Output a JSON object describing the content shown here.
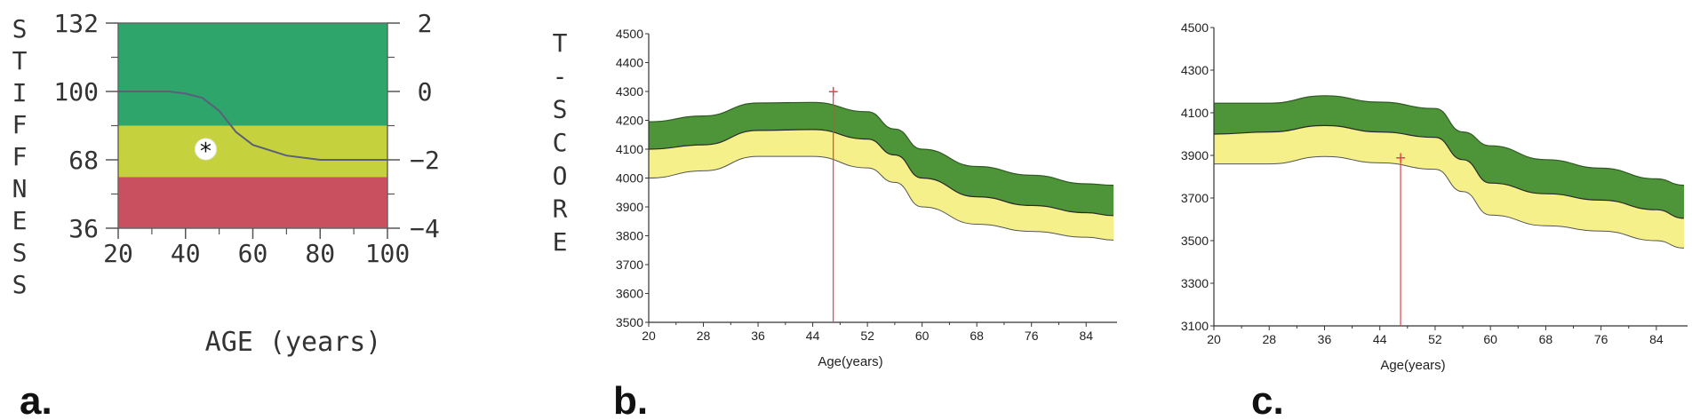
{
  "panels": [
    {
      "letter": "a."
    },
    {
      "letter": "b."
    },
    {
      "letter": "c."
    }
  ],
  "chart_data": [
    {
      "type": "area",
      "xlabel": "AGE (years)",
      "ylabel": "STIFFNESS",
      "y2label": "T-SCORE",
      "xlim": [
        20,
        100
      ],
      "ylim": [
        36,
        132
      ],
      "y2lim": [
        -4,
        2
      ],
      "x_ticks": [
        20,
        40,
        60,
        80,
        100
      ],
      "x_tick_labels": [
        "20",
        "40",
        "60",
        "80",
        "100"
      ],
      "y_ticks": [
        36,
        68,
        100,
        132
      ],
      "y_tick_labels": [
        "36",
        "68",
        "100",
        "132"
      ],
      "y2_ticks": [
        -4,
        -2,
        0,
        2
      ],
      "y2_tick_labels": [
        "−4",
        "−2",
        "0",
        "2"
      ],
      "zones": [
        {
          "from": 36,
          "to": 60,
          "color": "#c8505f"
        },
        {
          "from": 60,
          "to": 84,
          "color": "#c5d23e"
        },
        {
          "from": 84,
          "to": 132,
          "color": "#2ea56a"
        }
      ],
      "series": [
        {
          "values_x": [
            20,
            35,
            40,
            45,
            50,
            55,
            60,
            70,
            80,
            90,
            100
          ],
          "values_y": [
            100,
            100,
            99,
            97,
            91,
            81,
            75,
            70,
            68,
            68,
            68
          ],
          "color": "#5a5f7a"
        }
      ],
      "marker": {
        "x": 46,
        "y": 73,
        "symbol": "*"
      }
    },
    {
      "type": "area",
      "xlabel": "Age(years)",
      "xlim": [
        20,
        88
      ],
      "ylim": [
        3500,
        4500
      ],
      "x_ticks": [
        20,
        28,
        36,
        44,
        52,
        60,
        68,
        76,
        84
      ],
      "x_tick_labels": [
        "20",
        "28",
        "36",
        "44",
        "52",
        "60",
        "68",
        "76",
        "84"
      ],
      "y_ticks": [
        3500,
        3600,
        3700,
        3800,
        3900,
        4000,
        4100,
        4200,
        4300,
        4400,
        4500
      ],
      "y_tick_labels": [
        "3500",
        "3600",
        "3700",
        "3800",
        "3900",
        "4000",
        "4100",
        "4200",
        "4300",
        "4400",
        "4500"
      ],
      "x": [
        20,
        28,
        36,
        44,
        52,
        56,
        60,
        68,
        76,
        84,
        88
      ],
      "bands": {
        "upper": [
          4195,
          4215,
          4260,
          4262,
          4230,
          4170,
          4100,
          4040,
          4010,
          3980,
          3975
        ],
        "mid": [
          4100,
          4115,
          4165,
          4168,
          4135,
          4080,
          4000,
          3935,
          3905,
          3880,
          3870
        ],
        "lower": [
          4000,
          4025,
          4075,
          4075,
          4035,
          3985,
          3900,
          3840,
          3815,
          3795,
          3785
        ],
        "upper_color": "#4e9438",
        "lower_color": "#f5f08a"
      },
      "marker": {
        "x": 47,
        "y": 4300,
        "symbol": "+",
        "color": "#e8404a"
      }
    },
    {
      "type": "area",
      "xlabel": "Age(years)",
      "xlim": [
        20,
        88
      ],
      "ylim": [
        3100,
        4500
      ],
      "x_ticks": [
        20,
        28,
        36,
        44,
        52,
        60,
        68,
        76,
        84
      ],
      "x_tick_labels": [
        "20",
        "28",
        "36",
        "44",
        "52",
        "60",
        "68",
        "76",
        "84"
      ],
      "y_ticks": [
        3100,
        3300,
        3500,
        3700,
        3900,
        4100,
        4300,
        4500
      ],
      "y_tick_labels": [
        "3100",
        "3300",
        "3500",
        "3700",
        "3900",
        "4100",
        "4300",
        "4500"
      ],
      "x": [
        20,
        28,
        36,
        44,
        52,
        56,
        60,
        68,
        76,
        84,
        88
      ],
      "bands": {
        "upper": [
          4145,
          4145,
          4180,
          4150,
          4120,
          4010,
          3945,
          3880,
          3840,
          3790,
          3760
        ],
        "mid": [
          4000,
          4010,
          4040,
          4010,
          3985,
          3880,
          3770,
          3720,
          3690,
          3645,
          3605
        ],
        "lower": [
          3860,
          3860,
          3895,
          3865,
          3835,
          3730,
          3620,
          3570,
          3545,
          3500,
          3465
        ],
        "upper_color": "#4e9438",
        "lower_color": "#f5f08a"
      },
      "marker": {
        "x": 47,
        "y": 3890,
        "symbol": "+",
        "color": "#e8404a"
      }
    }
  ]
}
